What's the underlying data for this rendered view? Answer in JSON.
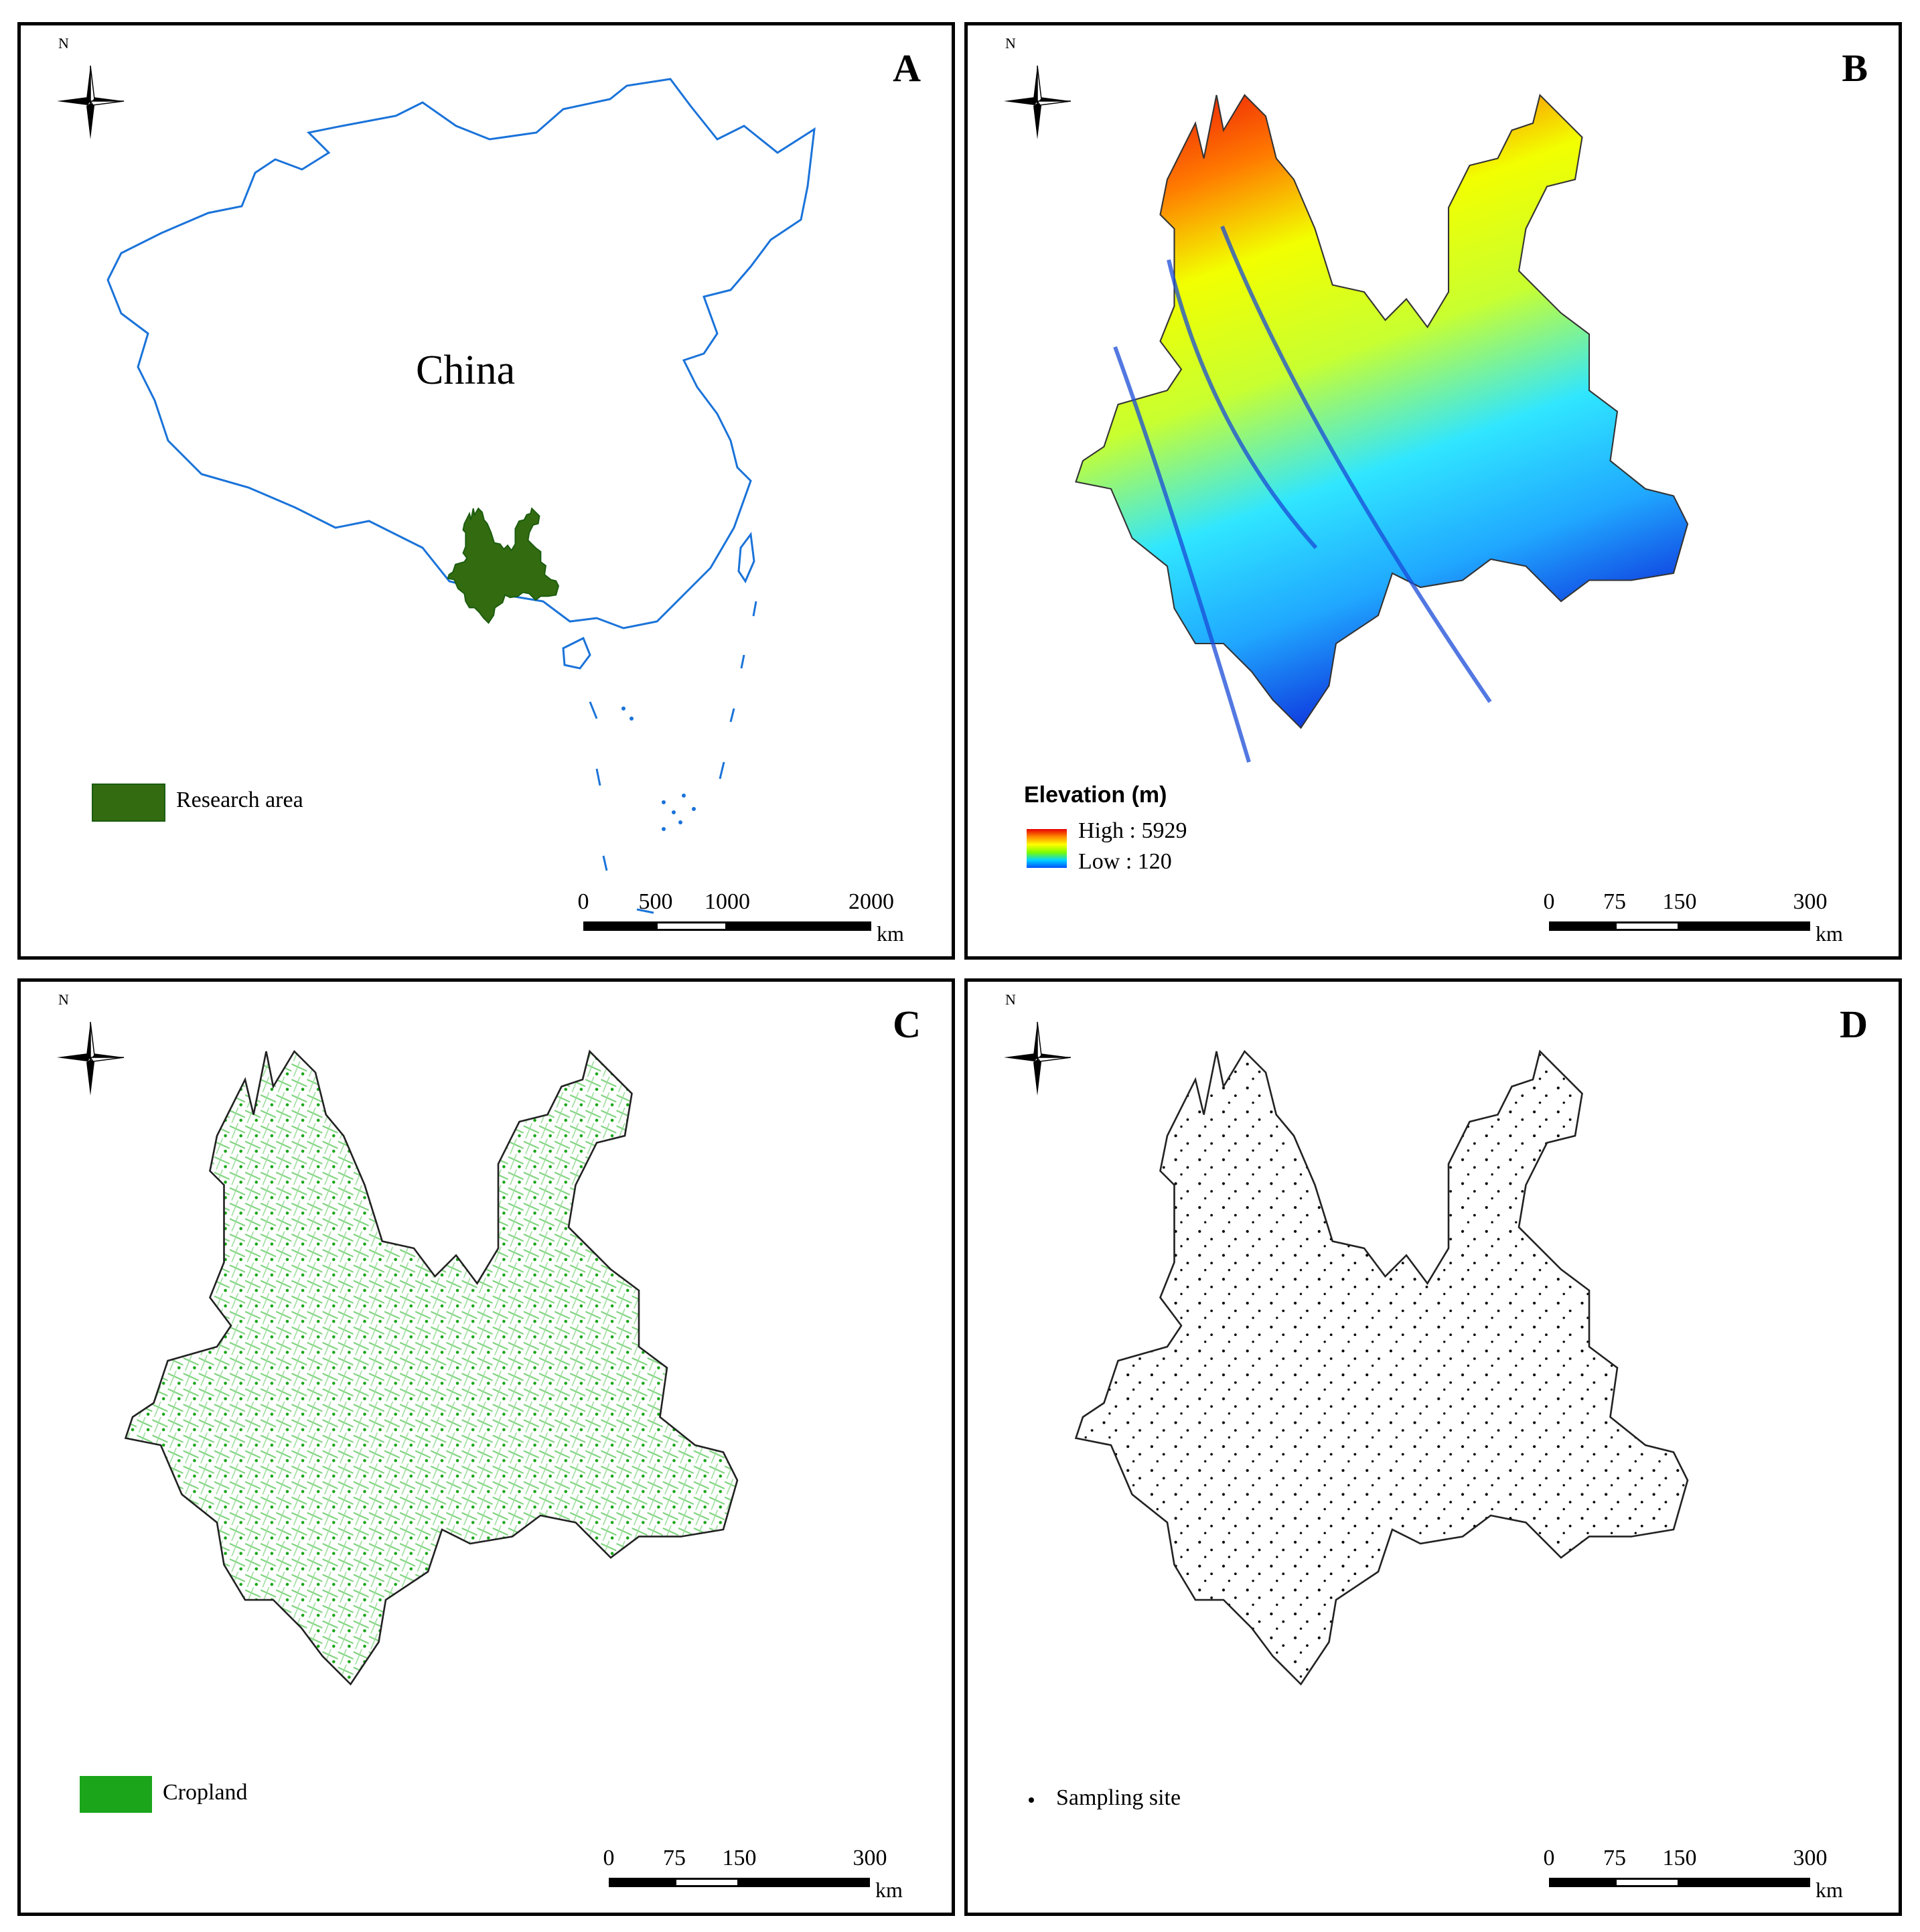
{
  "panels": {
    "a": {
      "letter": "A",
      "north": "N",
      "country_label": "China",
      "legend_label": "Research area",
      "legend_color": "#336b10",
      "outline_color": "#1a73d9",
      "scale": {
        "ticks": [
          "0",
          "500",
          "1000",
          "2000"
        ],
        "unit": "km"
      }
    },
    "b": {
      "letter": "B",
      "north": "N",
      "legend_title": "Elevation (m)",
      "high_label": "High : 5929",
      "low_label": "Low : 120",
      "scale": {
        "ticks": [
          "0",
          "75",
          "150",
          "300"
        ],
        "unit": "km"
      }
    },
    "c": {
      "letter": "C",
      "north": "N",
      "legend_label": "Cropland",
      "legend_color": "#1aa51a",
      "scale": {
        "ticks": [
          "0",
          "75",
          "150",
          "300"
        ],
        "unit": "km"
      }
    },
    "d": {
      "letter": "D",
      "north": "N",
      "legend_label": "Sampling site",
      "scale": {
        "ticks": [
          "0",
          "75",
          "150",
          "300"
        ],
        "unit": "km"
      }
    }
  }
}
